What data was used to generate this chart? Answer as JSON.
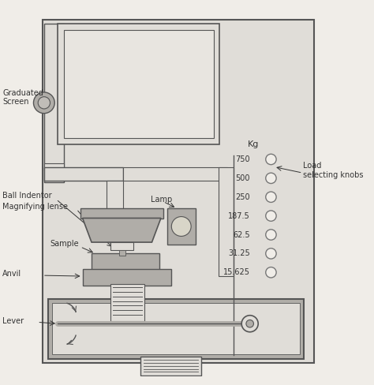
{
  "bg_color": "#f0ede8",
  "machine_color": "#d0cdc8",
  "machine_light": "#e0ddd8",
  "machine_dark": "#b0ada8",
  "machine_border": "#555555",
  "white": "#ffffff",
  "text_color": "#333333",
  "labels": {
    "graduated_screen": "Graduated\nScreen",
    "ball_indentor": "Ball Indentor",
    "magnifying_lense": "Magnifying lense",
    "lamp": "Lamp",
    "sample": "Sample",
    "anvil": "Anvil",
    "lever": "Lever",
    "kg": "Kg",
    "load_selecting": "Load\nselecting knobs"
  },
  "knob_values": [
    "750",
    "500",
    "250",
    "187.5",
    "62.5",
    "31.25",
    "15.625"
  ],
  "figsize": [
    4.74,
    4.88
  ],
  "dpi": 100
}
